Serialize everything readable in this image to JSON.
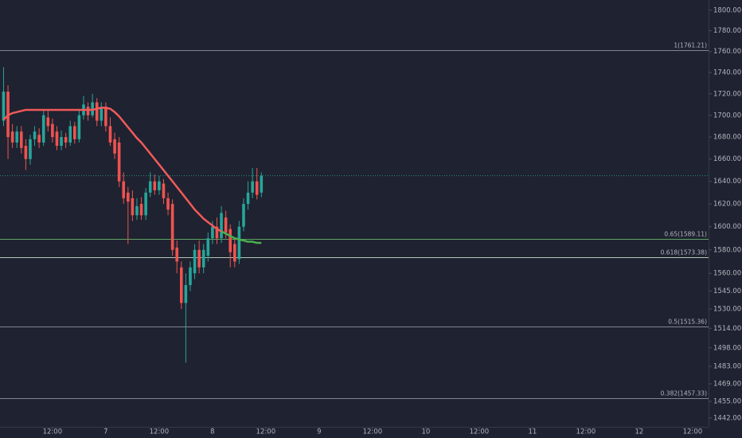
{
  "chart_data": {
    "type": "candlestick",
    "log_scale": true,
    "x": [
      -23,
      -22,
      -21,
      -20,
      -19,
      -18,
      -17,
      -16,
      -15,
      -14,
      -13,
      -12,
      -11,
      -10,
      -9,
      -8,
      -7,
      -6,
      -5,
      -4,
      -3,
      -2,
      -1,
      0,
      1,
      2,
      3,
      4,
      5,
      6,
      7,
      8,
      9,
      10,
      11,
      12,
      13,
      14,
      15,
      16,
      17,
      18,
      19,
      20,
      21,
      22,
      23,
      24,
      25,
      26,
      27,
      28,
      29,
      30,
      31,
      32,
      33,
      34,
      35
    ],
    "open": [
      1695,
      1722,
      1685,
      1675,
      1685,
      1672,
      1660,
      1678,
      1682,
      1675,
      1698,
      1692,
      1685,
      1672,
      1680,
      1675,
      1690,
      1678,
      1700,
      1708,
      1700,
      1712,
      1695,
      1708,
      1690,
      1678,
      1675,
      1640,
      1630,
      1625,
      1610,
      1620,
      1610,
      1630,
      1640,
      1632,
      1638,
      1625,
      1620,
      1582,
      1565,
      1535,
      1550,
      1560,
      1580,
      1565,
      1575,
      1590,
      1600,
      1590,
      1608,
      1598,
      1585,
      1572,
      1600,
      1620,
      1630,
      1640,
      1630
    ],
    "high": [
      1745,
      1728,
      1692,
      1690,
      1690,
      1678,
      1682,
      1690,
      1688,
      1705,
      1704,
      1697,
      1690,
      1686,
      1684,
      1695,
      1694,
      1705,
      1718,
      1712,
      1720,
      1716,
      1712,
      1712,
      1698,
      1684,
      1680,
      1648,
      1635,
      1632,
      1625,
      1626,
      1634,
      1648,
      1646,
      1645,
      1642,
      1630,
      1624,
      1588,
      1570,
      1560,
      1570,
      1585,
      1588,
      1585,
      1595,
      1605,
      1608,
      1618,
      1614,
      1602,
      1590,
      1605,
      1625,
      1640,
      1652,
      1652,
      1648
    ],
    "low": [
      1690,
      1660,
      1670,
      1670,
      1665,
      1650,
      1655,
      1672,
      1670,
      1672,
      1685,
      1675,
      1668,
      1668,
      1670,
      1672,
      1674,
      1675,
      1696,
      1695,
      1698,
      1690,
      1690,
      1685,
      1672,
      1660,
      1635,
      1620,
      1585,
      1605,
      1606,
      1606,
      1606,
      1626,
      1628,
      1628,
      1620,
      1610,
      1575,
      1560,
      1530,
      1486,
      1545,
      1555,
      1560,
      1560,
      1570,
      1585,
      1585,
      1586,
      1590,
      1565,
      1565,
      1568,
      1596,
      1615,
      1625,
      1624,
      1626
    ],
    "close": [
      1722,
      1680,
      1675,
      1685,
      1670,
      1660,
      1678,
      1685,
      1675,
      1700,
      1690,
      1680,
      1672,
      1680,
      1675,
      1690,
      1678,
      1700,
      1710,
      1700,
      1712,
      1695,
      1708,
      1690,
      1675,
      1665,
      1640,
      1625,
      1622,
      1610,
      1618,
      1610,
      1630,
      1640,
      1632,
      1640,
      1625,
      1615,
      1580,
      1570,
      1535,
      1550,
      1565,
      1580,
      1565,
      1580,
      1590,
      1600,
      1590,
      1612,
      1595,
      1578,
      1570,
      1600,
      1620,
      1630,
      1640,
      1628,
      1645
    ],
    "up_color": "#26a69a",
    "down_color": "#ef5350",
    "lines": [
      {
        "color": "#f05a5a",
        "values": [
          1696,
          1700,
          1702,
          1703,
          1704,
          1705,
          1705,
          1705,
          1705,
          1705,
          1705,
          1705,
          1705,
          1705,
          1705,
          1705,
          1705,
          1705,
          1705,
          1705,
          1705,
          1706,
          1707,
          1707,
          1706,
          1703,
          1699,
          1694,
          1689,
          1684,
          1679,
          1675,
          1670,
          1665,
          1660,
          1655,
          1650,
          1645,
          1640,
          1635,
          1630,
          1625,
          1620,
          1615,
          1611,
          1607,
          1604,
          1601,
          1598,
          1596,
          null,
          null,
          null,
          null,
          null,
          null,
          null,
          null,
          null
        ]
      },
      {
        "color": "#4caf50",
        "values": [
          null,
          null,
          null,
          null,
          null,
          null,
          null,
          null,
          null,
          null,
          null,
          null,
          null,
          null,
          null,
          null,
          null,
          null,
          null,
          null,
          null,
          null,
          null,
          null,
          null,
          null,
          null,
          null,
          null,
          null,
          null,
          null,
          null,
          null,
          null,
          null,
          null,
          null,
          null,
          null,
          null,
          null,
          null,
          null,
          null,
          null,
          null,
          null,
          null,
          1596,
          1594,
          1592,
          1590,
          1589,
          1588,
          1587,
          1587,
          1586,
          1586
        ]
      }
    ],
    "levels": [
      {
        "label": "1(1761.21)",
        "value": 1761.21,
        "color": "#9598a1"
      },
      {
        "label": "0.65(1589.11)",
        "value": 1589.11,
        "color": "#66bb6a"
      },
      {
        "label": "0.618(1573.38)",
        "value": 1573.38,
        "color": "#c8e6c9"
      },
      {
        "label": "0.5(1515.36)",
        "value": 1515.36,
        "color": "#9598a1"
      },
      {
        "label": "0.382(1457.33)",
        "value": 1457.33,
        "color": "#9598a1"
      }
    ],
    "xlim": [
      -23.8,
      135.6
    ],
    "xticks": [
      {
        "value": -12,
        "label": "12:00"
      },
      {
        "value": 0,
        "label": "7"
      },
      {
        "value": 12,
        "label": "12:00"
      },
      {
        "value": 24,
        "label": "8"
      },
      {
        "value": 36,
        "label": "12:00"
      },
      {
        "value": 48,
        "label": "9"
      },
      {
        "value": 60,
        "label": "12:00"
      },
      {
        "value": 72,
        "label": "10"
      },
      {
        "value": 84,
        "label": "12:00"
      },
      {
        "value": 96,
        "label": "11"
      },
      {
        "value": 108,
        "label": "12:00"
      },
      {
        "value": 120,
        "label": "12"
      },
      {
        "value": 132,
        "label": "12:00"
      }
    ],
    "ylim": [
      1435,
      1810
    ],
    "yticks": [
      {
        "value": 1800,
        "label": "1800.00"
      },
      {
        "value": 1780,
        "label": "1780.00"
      },
      {
        "value": 1760,
        "label": "1760.00"
      },
      {
        "value": 1740,
        "label": "1740.00"
      },
      {
        "value": 1720,
        "label": "1720.00"
      },
      {
        "value": 1700,
        "label": "1700.00"
      },
      {
        "value": 1680,
        "label": "1680.00"
      },
      {
        "value": 1660,
        "label": "1660.00"
      },
      {
        "value": 1640,
        "label": "1640.00"
      },
      {
        "value": 1620,
        "label": "1620.00"
      },
      {
        "value": 1600,
        "label": "1600.00"
      },
      {
        "value": 1580,
        "label": "1580.00"
      },
      {
        "value": 1560,
        "label": "1560.00"
      },
      {
        "value": 1545,
        "label": "1545.00"
      },
      {
        "value": 1530,
        "label": "1530.00"
      },
      {
        "value": 1514,
        "label": "1514.00"
      },
      {
        "value": 1498,
        "label": "1498.00"
      },
      {
        "value": 1483,
        "label": "1483.00"
      },
      {
        "value": 1469,
        "label": "1469.00"
      },
      {
        "value": 1455,
        "label": "1455.00"
      },
      {
        "value": 1442,
        "label": "1442.00"
      }
    ]
  }
}
